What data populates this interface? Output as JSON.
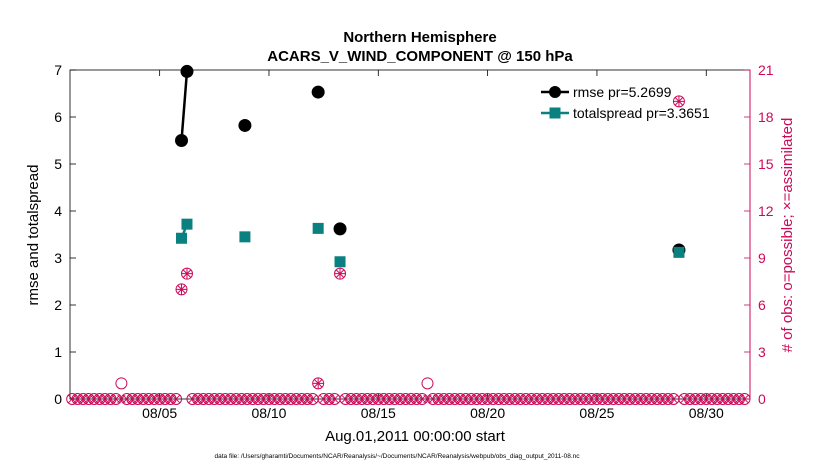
{
  "chart_data": {
    "type": "line",
    "title_line1": "Northern Hemisphere",
    "title_line2": "ACARS_V_WIND_COMPONENT @ 150 hPa",
    "xlabel": "Aug.01,2011 00:00:00 start",
    "ylabel_left": "rmse and totalspread",
    "ylabel_right": "# of obs: o=possible; ×=assimilated",
    "footnote": "data file: /Users/gharamti/Documents/NCAR/Reanalysis/~/Documents/NCAR/Reanalysis/webpub/obs_diag_output_2011-08.nc",
    "xlim": [
      0.9,
      32.0
    ],
    "ylim_left": [
      0,
      7
    ],
    "ylim_right": [
      0,
      21
    ],
    "x_ticks": [
      5,
      10,
      15,
      20,
      25,
      30
    ],
    "x_tick_labels": [
      "08/05",
      "08/10",
      "08/15",
      "08/20",
      "08/25",
      "08/30"
    ],
    "y_left_ticks": [
      "0",
      "1",
      "2",
      "3",
      "4",
      "5",
      "6",
      "7"
    ],
    "y_right_ticks": [
      "0",
      "3",
      "6",
      "9",
      "12",
      "15",
      "18",
      "21"
    ],
    "colors": {
      "rmse": "#000000",
      "spread": "#0a8080",
      "obs": "#cc0a5a"
    },
    "series": [
      {
        "name": "rmse",
        "legend": "rmse pr=5.2699",
        "points": [
          [
            6.0,
            5.5
          ],
          [
            6.25,
            6.97
          ],
          null,
          [
            8.9,
            5.82
          ],
          null,
          [
            12.25,
            6.53
          ],
          null,
          [
            13.25,
            3.62
          ],
          null,
          [
            28.75,
            3.17
          ]
        ]
      },
      {
        "name": "totalspread",
        "legend": "totalspread pr=3.3651",
        "points": [
          [
            6.0,
            3.42
          ],
          [
            6.25,
            3.72
          ],
          null,
          [
            8.9,
            3.45
          ],
          null,
          [
            12.25,
            3.63
          ],
          null,
          [
            13.25,
            2.92
          ],
          null,
          [
            28.75,
            3.12
          ]
        ]
      }
    ],
    "obs_possible_nonzero": [
      [
        3.25,
        1
      ],
      [
        6.0,
        7
      ],
      [
        6.25,
        8
      ],
      [
        8.9,
        10
      ],
      [
        12.25,
        1
      ],
      [
        13.25,
        8
      ],
      [
        17.25,
        1
      ],
      [
        28.75,
        19
      ]
    ],
    "obs_assimilated_nonzero": [
      [
        6.0,
        7
      ],
      [
        6.25,
        8
      ],
      [
        8.9,
        10
      ],
      [
        12.25,
        1
      ],
      [
        13.25,
        8
      ],
      [
        28.75,
        19
      ]
    ],
    "obs_time_start": 1.0,
    "obs_time_end": 31.75,
    "obs_time_step": 0.25
  }
}
